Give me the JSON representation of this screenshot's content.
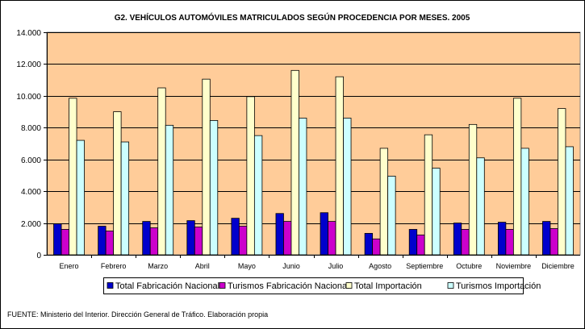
{
  "chart_data": {
    "type": "bar",
    "title": "G2. VEHÍCULOS AUTOMÓVILES MATRICULADOS SEGÚN PROCEDENCIA POR MESES. 2005",
    "source_note": "FUENTE: Ministerio del Interior. Dirección General de Tráfico. Elaboración propia",
    "categories": [
      "Enero",
      "Febrero",
      "Marzo",
      "Abril",
      "Mayo",
      "Junio",
      "Julio",
      "Agosto",
      "Septiembre",
      "Octubre",
      "Noviembre",
      "Diciembre"
    ],
    "ylim": [
      0,
      14000
    ],
    "yticks": [
      0,
      2000,
      4000,
      6000,
      8000,
      10000,
      12000,
      14000
    ],
    "ytick_labels": [
      "0",
      "2.000",
      "4.000",
      "6.000",
      "8.000",
      "10.000",
      "12.000",
      "14.000"
    ],
    "xlabel": "",
    "ylabel": "",
    "grid": true,
    "legend_position": "bottom",
    "plot_background": "#FFCC99",
    "series": [
      {
        "name": "Total Fabricación Nacional",
        "color": "#0000CC",
        "values": [
          1950,
          1800,
          2100,
          2150,
          2300,
          2600,
          2650,
          1350,
          1600,
          2000,
          2050,
          2100
        ]
      },
      {
        "name": "Turismos Fabricación Nacional",
        "color": "#CC00CC",
        "values": [
          1600,
          1500,
          1700,
          1750,
          1800,
          2100,
          2100,
          1000,
          1250,
          1600,
          1600,
          1650
        ]
      },
      {
        "name": "Total Importación",
        "color": "#FFFFCC",
        "values": [
          9850,
          9000,
          10500,
          11050,
          9950,
          11600,
          11200,
          6700,
          7550,
          8200,
          9850,
          9200
        ]
      },
      {
        "name": "Turismos Importación",
        "color": "#CCFFFF",
        "values": [
          7200,
          7100,
          8150,
          8450,
          7500,
          8600,
          8600,
          4950,
          5450,
          6100,
          6700,
          6800
        ]
      }
    ]
  }
}
